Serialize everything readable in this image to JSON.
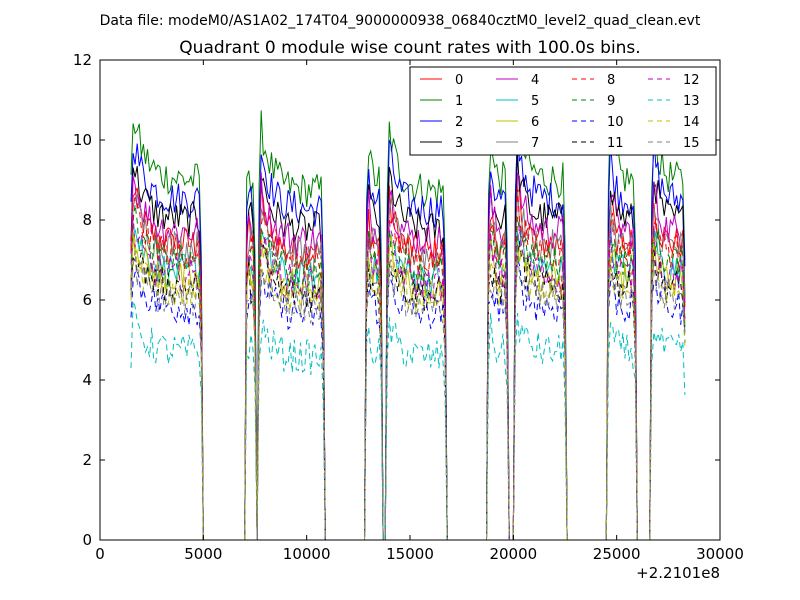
{
  "chart_data": {
    "type": "line",
    "suptitle": "Data file: modeM0/AS1A02_174T04_9000000938_06840cztM0_level2_quad_clean.evt",
    "title": "Quadrant 0 module wise count rates with 100.0s bins.",
    "xlabel": "",
    "ylabel": "",
    "xlim": [
      0,
      30000
    ],
    "ylim": [
      0,
      12
    ],
    "x_offset_label": "+2.2101e8",
    "xticks": [
      0,
      5000,
      10000,
      15000,
      20000,
      25000,
      30000
    ],
    "yticks": [
      0,
      2,
      4,
      6,
      8,
      10,
      12
    ],
    "legend_columns": 4,
    "legend_position": "top-right",
    "bin_size_s": 100,
    "active_windows": [
      [
        1500,
        4900
      ],
      [
        7100,
        7500
      ],
      [
        7700,
        10800
      ],
      [
        12900,
        13600
      ],
      [
        13900,
        16700
      ],
      [
        18800,
        19700
      ],
      [
        20100,
        22500
      ],
      [
        24600,
        25900
      ],
      [
        26700,
        28300
      ]
    ],
    "series": [
      {
        "name": "0",
        "color": "#ff0000",
        "dash": "solid",
        "level": 7.4
      },
      {
        "name": "1",
        "color": "#008000",
        "dash": "solid",
        "level": 9.0
      },
      {
        "name": "2",
        "color": "#0000ff",
        "dash": "solid",
        "level": 8.5
      },
      {
        "name": "3",
        "color": "#000000",
        "dash": "solid",
        "level": 8.0
      },
      {
        "name": "4",
        "color": "#bf00bf",
        "dash": "solid",
        "level": 7.7
      },
      {
        "name": "5",
        "color": "#00bfbf",
        "dash": "solid",
        "level": 6.7
      },
      {
        "name": "6",
        "color": "#bfbf00",
        "dash": "solid",
        "level": 6.5
      },
      {
        "name": "7",
        "color": "#808080",
        "dash": "solid",
        "level": 7.3
      },
      {
        "name": "8",
        "color": "#ff0000",
        "dash": "dashed",
        "level": 7.2
      },
      {
        "name": "9",
        "color": "#008000",
        "dash": "dashed",
        "level": 6.9
      },
      {
        "name": "10",
        "color": "#0000ff",
        "dash": "dashed",
        "level": 5.8
      },
      {
        "name": "11",
        "color": "#000000",
        "dash": "dashed",
        "level": 6.3
      },
      {
        "name": "12",
        "color": "#bf00bf",
        "dash": "dashed",
        "level": 6.6
      },
      {
        "name": "13",
        "color": "#00bfbf",
        "dash": "dashed",
        "level": 4.7
      },
      {
        "name": "14",
        "color": "#bfbf00",
        "dash": "dashed",
        "level": 6.2
      },
      {
        "name": "15",
        "color": "#808080",
        "dash": "dashed",
        "level": 6.0
      }
    ]
  }
}
